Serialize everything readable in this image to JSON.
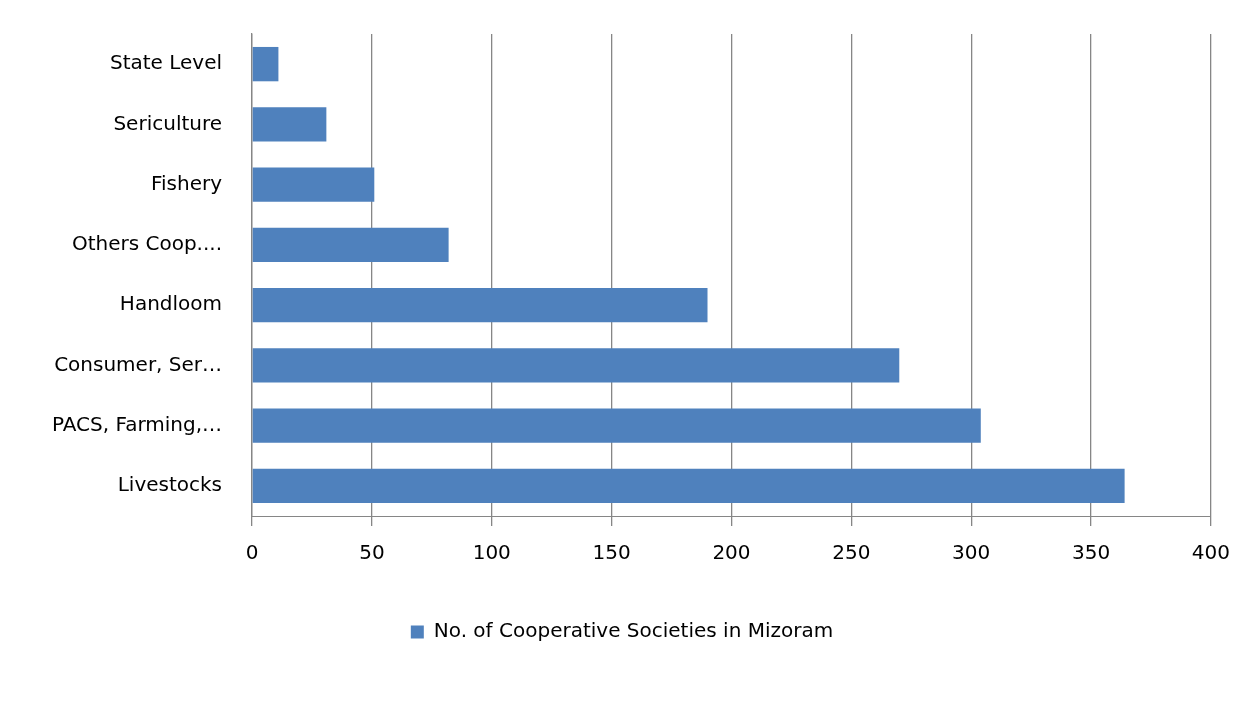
{
  "chart_data": {
    "type": "bar",
    "orientation": "horizontal",
    "categories": [
      "State Level",
      "Sericulture",
      "Fishery",
      "Others Coop....",
      "Handloom",
      "Consumer, Ser…",
      "PACS, Farming,…",
      "Livestocks"
    ],
    "series": [
      {
        "name": "No. of Cooperative Societies in Mizoram",
        "color": "#4f81bd",
        "values": [
          11,
          31,
          51,
          82,
          190,
          270,
          304,
          364
        ]
      }
    ],
    "xlim": [
      0,
      400
    ],
    "xticks": [
      0,
      50,
      100,
      150,
      200,
      250,
      300,
      350,
      400
    ],
    "grid": "x",
    "legend": "bottom"
  }
}
